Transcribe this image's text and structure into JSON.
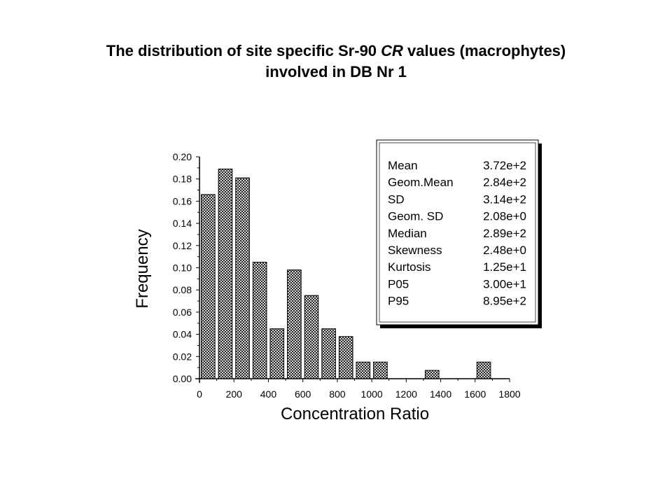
{
  "title": {
    "line1_pre": "The distribution of site specific Sr-90 ",
    "line1_italic": "CR",
    "line1_post": " values (macrophytes)",
    "line2": "involved in DB Nr 1"
  },
  "chart_data": {
    "type": "bar",
    "xlabel": "Concentration Ratio",
    "ylabel": "Frequency",
    "xlim": [
      0,
      1800
    ],
    "ylim": [
      0,
      0.2
    ],
    "x_ticks": [
      "0",
      "200",
      "400",
      "600",
      "800",
      "1000",
      "1200",
      "1400",
      "1600",
      "1800"
    ],
    "y_ticks": [
      "0.00",
      "0.02",
      "0.04",
      "0.06",
      "0.08",
      "0.10",
      "0.12",
      "0.14",
      "0.16",
      "0.18",
      "0.20"
    ],
    "bin_width": 100,
    "bins": [
      {
        "from": 0,
        "to": 100,
        "value": 0.166
      },
      {
        "from": 100,
        "to": 200,
        "value": 0.189
      },
      {
        "from": 200,
        "to": 300,
        "value": 0.181
      },
      {
        "from": 300,
        "to": 400,
        "value": 0.105
      },
      {
        "from": 400,
        "to": 500,
        "value": 0.045
      },
      {
        "from": 500,
        "to": 600,
        "value": 0.098
      },
      {
        "from": 600,
        "to": 700,
        "value": 0.075
      },
      {
        "from": 700,
        "to": 800,
        "value": 0.045
      },
      {
        "from": 800,
        "to": 900,
        "value": 0.038
      },
      {
        "from": 900,
        "to": 1000,
        "value": 0.015
      },
      {
        "from": 1000,
        "to": 1100,
        "value": 0.015
      },
      {
        "from": 1100,
        "to": 1200,
        "value": 0
      },
      {
        "from": 1200,
        "to": 1300,
        "value": 0
      },
      {
        "from": 1300,
        "to": 1400,
        "value": 0.0075
      },
      {
        "from": 1400,
        "to": 1500,
        "value": 0
      },
      {
        "from": 1500,
        "to": 1600,
        "value": 0
      },
      {
        "from": 1600,
        "to": 1700,
        "value": 0.015
      }
    ],
    "fill_pattern": "crosshatch",
    "legend_placement": "top-right",
    "stats": [
      {
        "label": "Mean",
        "value": "3.72e+2"
      },
      {
        "label": "Geom.Mean",
        "value": "2.84e+2"
      },
      {
        "label": "SD",
        "value": "3.14e+2"
      },
      {
        "label": "Geom. SD",
        "value": "2.08e+0"
      },
      {
        "label": "Median",
        "value": "2.89e+2"
      },
      {
        "label": "Skewness",
        "value": "2.48e+0"
      },
      {
        "label": "Kurtosis",
        "value": "1.25e+1"
      },
      {
        "label": "P05",
        "value": "3.00e+1"
      },
      {
        "label": "P95",
        "value": "8.95e+2"
      }
    ]
  }
}
